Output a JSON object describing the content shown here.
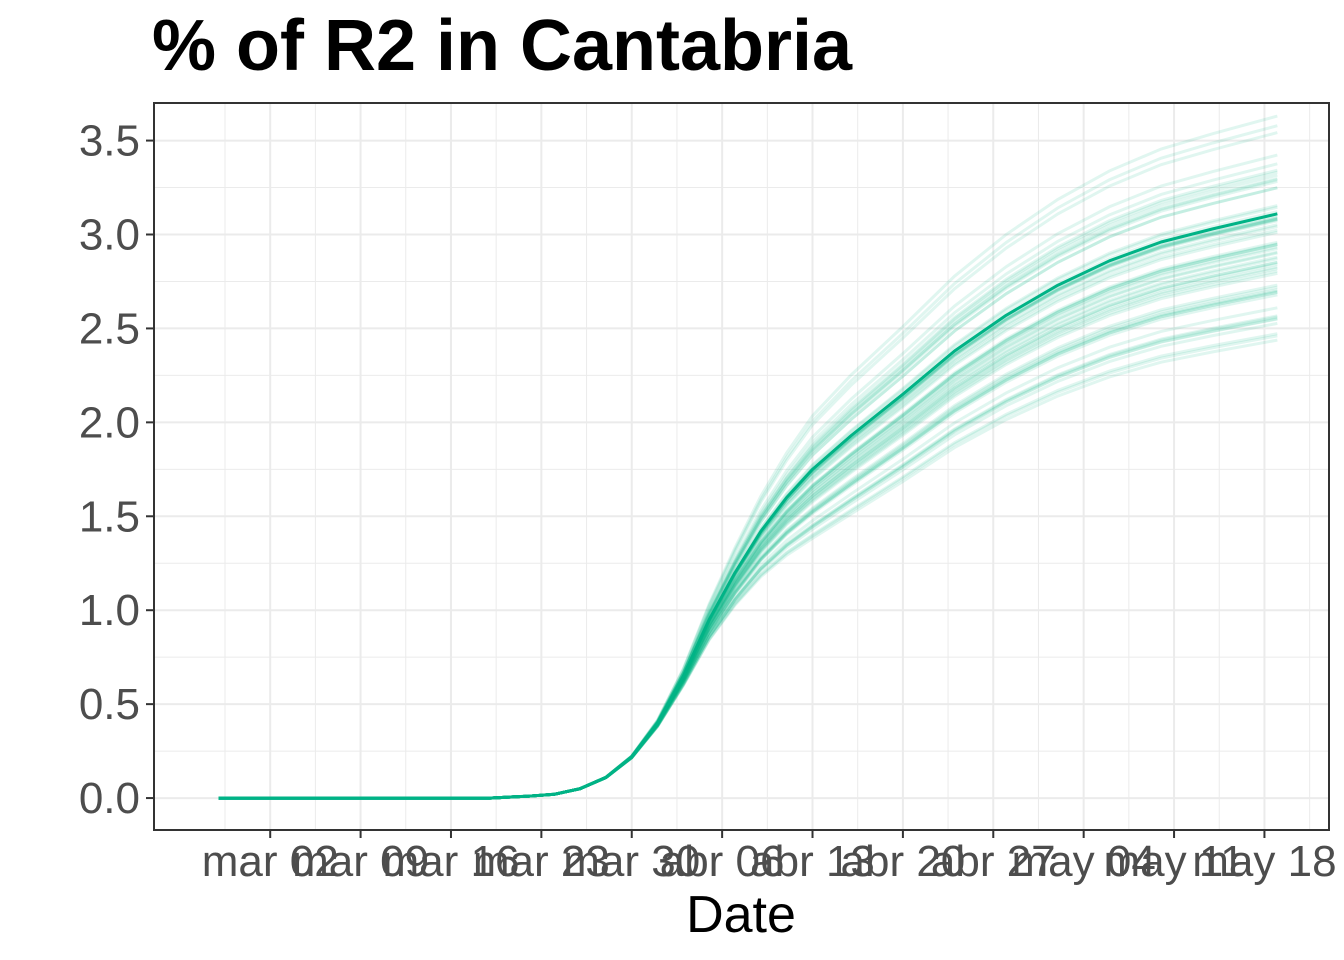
{
  "chart_data": {
    "type": "line",
    "title": "% of R2 in  Cantabria",
    "xlabel": "Date",
    "ylabel": "",
    "x_tick_labels": [
      "mar 02",
      "mar 09",
      "mar 16",
      "mar 23",
      "mar 30",
      "abr 06",
      "abr 13",
      "abr 20",
      "abr 27",
      "may 04",
      "may 11",
      "may 18"
    ],
    "y_tick_labels": [
      "0.0",
      "0.5",
      "1.0",
      "1.5",
      "2.0",
      "2.5",
      "3.0",
      "3.5"
    ],
    "xlim": [
      "2020-02-22",
      "2020-05-23"
    ],
    "ylim": [
      -0.17,
      3.7
    ],
    "grid": true,
    "legend": "none",
    "colors": {
      "line": "#00b386",
      "grid": "#ebebeb",
      "border": "#333333"
    },
    "series": [
      {
        "role": "median",
        "x": [
          "2020-02-27",
          "2020-03-05",
          "2020-03-12",
          "2020-03-19",
          "2020-03-22",
          "2020-03-24",
          "2020-03-26",
          "2020-03-28",
          "2020-03-30",
          "2020-04-01",
          "2020-04-03",
          "2020-04-05",
          "2020-04-07",
          "2020-04-09",
          "2020-04-11",
          "2020-04-13",
          "2020-04-16",
          "2020-04-20",
          "2020-04-24",
          "2020-04-28",
          "2020-05-02",
          "2020-05-06",
          "2020-05-10",
          "2020-05-14",
          "2020-05-19"
        ],
        "values": [
          0.0,
          0.0,
          0.0,
          0.0,
          0.01,
          0.02,
          0.05,
          0.11,
          0.22,
          0.4,
          0.65,
          0.95,
          1.2,
          1.42,
          1.6,
          1.75,
          1.93,
          2.15,
          2.38,
          2.57,
          2.73,
          2.86,
          2.96,
          3.03,
          3.11
        ]
      }
    ],
    "ensemble": {
      "count": 60,
      "final_value_range": [
        2.5,
        3.53
      ],
      "opacity": 0.12
    }
  }
}
